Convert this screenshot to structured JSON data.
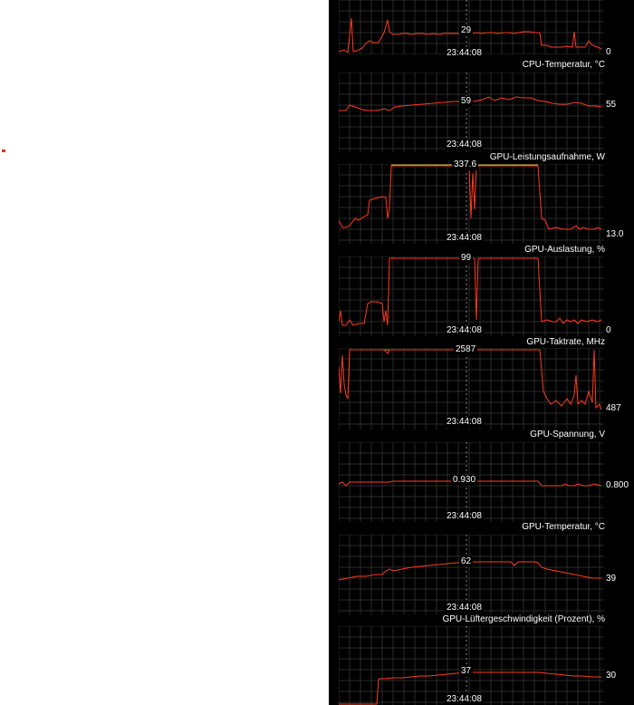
{
  "monitor": {
    "panels": [
      {
        "title": "",
        "current": "29",
        "min": "0",
        "time": "23:44:08"
      },
      {
        "title": "CPU-Temperatur, °C",
        "current": "59",
        "min": "55",
        "time": "23:44:08"
      },
      {
        "title": "GPU-Leistungsaufnahme, W",
        "current": "337.6",
        "min": "13.0",
        "time": "23:44:08"
      },
      {
        "title": "GPU-Auslastung, %",
        "current": "99",
        "min": "0",
        "time": "23:44:08"
      },
      {
        "title": "GPU-Taktrate, MHz",
        "current": "2587",
        "min": "487",
        "time": "23:44:08"
      },
      {
        "title": "GPU-Spannung, V",
        "current": "0.930",
        "min": "0.800",
        "time": "23:44:08"
      },
      {
        "title": "GPU-Temperatur, °C",
        "current": "62",
        "min": "39",
        "time": "23:44:08"
      },
      {
        "title": "GPU-Lüftergeschwindigkeit (Prozent), %",
        "current": "37",
        "min": "30",
        "time": "23:44:08"
      }
    ]
  }
}
